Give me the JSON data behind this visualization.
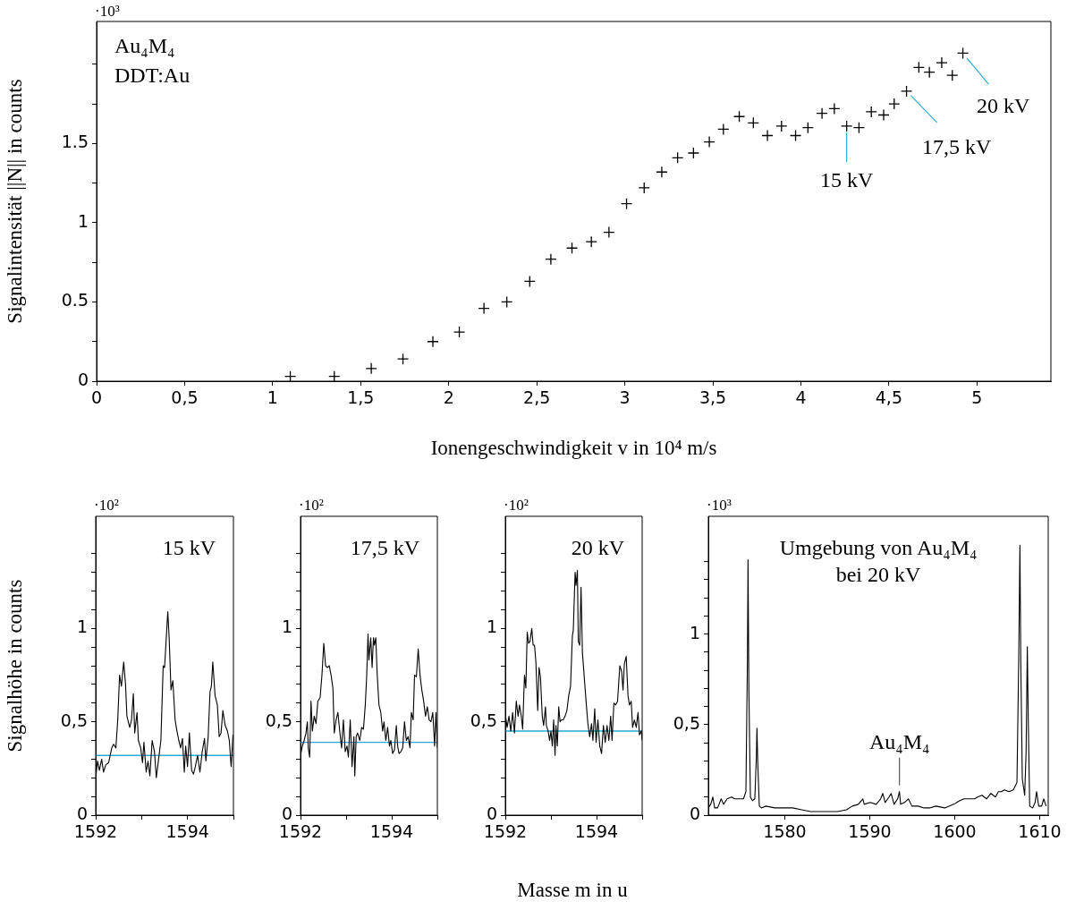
{
  "chart_data": [
    {
      "type": "scatter",
      "xlabel": "Ionengeschwindigkeit v in 10⁴ m/s",
      "ylabel": "Signalintensität ||N|| in counts",
      "color": "#000000",
      "marker": "cross",
      "x": [
        1.1,
        1.35,
        1.56,
        1.74,
        1.91,
        2.06,
        2.2,
        2.33,
        2.46,
        2.58,
        2.7,
        2.81,
        2.91,
        3.01,
        3.11,
        3.21,
        3.3,
        3.39,
        3.48,
        3.56,
        3.65,
        3.73,
        3.81,
        3.89,
        3.97,
        4.04,
        4.12,
        4.19,
        4.26,
        4.33,
        4.4,
        4.47,
        4.53,
        4.6,
        4.67,
        4.73,
        4.8,
        4.86,
        4.92
      ],
      "values": [
        0.03,
        0.03,
        0.08,
        0.14,
        0.25,
        0.31,
        0.46,
        0.5,
        0.63,
        0.77,
        0.84,
        0.88,
        0.94,
        1.12,
        1.22,
        1.32,
        1.41,
        1.44,
        1.51,
        1.59,
        1.67,
        1.63,
        1.55,
        1.61,
        1.55,
        1.6,
        1.69,
        1.72,
        1.61,
        1.6,
        1.7,
        1.68,
        1.75,
        1.83,
        1.98,
        1.95,
        2.01,
        1.93,
        2.07
      ],
      "xlim": [
        0,
        5.42
      ],
      "ylim": [
        0,
        2.27
      ],
      "xticks": [
        0,
        {
          "value": 0.5,
          "label": "0,5"
        },
        1,
        {
          "value": 1.5,
          "label": "1,5"
        },
        2,
        {
          "value": 2.5,
          "label": "2,5"
        },
        3,
        {
          "value": 3.5,
          "label": "3,5"
        },
        4,
        {
          "value": 4.5,
          "label": "4,5"
        },
        5
      ],
      "yticks": [
        0,
        {
          "value": 0.25,
          "label": null
        },
        0.5,
        {
          "value": 0.75,
          "label": null
        },
        1,
        {
          "value": 1.25,
          "label": null
        },
        1.5,
        {
          "value": 1.75,
          "label": null
        },
        {
          "value": 2,
          "label": null
        }
      ],
      "annotations": [
        "·10³",
        "Au₄M₄",
        "DDT:Au",
        {
          "text": "15 kV",
          "x": 4.26,
          "y": 1.61
        },
        {
          "text": "17,5 kV",
          "x": 4.6,
          "y": 1.83
        },
        {
          "text": "20 kV",
          "x": 4.92,
          "y": 2.07
        }
      ]
    },
    {
      "type": "line",
      "ylabel": "Signalhöhe in counts",
      "color": "#000000",
      "x": [
        1592.0,
        1592.04,
        1592.08,
        1592.13,
        1592.17,
        1592.22,
        1592.28,
        1592.35,
        1592.39,
        1592.44,
        1592.48,
        1592.52,
        1592.56,
        1592.61,
        1592.65,
        1592.68,
        1592.74,
        1592.78,
        1592.82,
        1592.85,
        1592.9,
        1592.93,
        1592.98,
        1593.02,
        1593.05,
        1593.1,
        1593.14,
        1593.18,
        1593.23,
        1593.28,
        1593.32,
        1593.37,
        1593.42,
        1593.47,
        1593.5,
        1593.54,
        1593.57,
        1593.6,
        1593.64,
        1593.68,
        1593.73,
        1593.77,
        1593.81,
        1593.85,
        1593.89,
        1593.93,
        1593.96,
        1594.0,
        1594.04,
        1594.09,
        1594.13,
        1594.17,
        1594.22,
        1594.27,
        1594.32,
        1594.37,
        1594.4,
        1594.45,
        1594.49,
        1594.52,
        1594.55,
        1594.6,
        1594.65,
        1594.69,
        1594.73,
        1594.77,
        1594.82,
        1594.87,
        1594.91,
        1594.95,
        1594.99
      ],
      "values": [
        0.2,
        0.29,
        0.24,
        0.3,
        0.23,
        0.27,
        0.28,
        0.36,
        0.38,
        0.36,
        0.51,
        0.75,
        0.69,
        0.82,
        0.7,
        0.53,
        0.47,
        0.51,
        0.65,
        0.44,
        0.55,
        0.4,
        0.36,
        0.28,
        0.39,
        0.23,
        0.29,
        0.21,
        0.4,
        0.34,
        0.2,
        0.3,
        0.4,
        0.8,
        0.79,
        0.96,
        1.09,
        0.95,
        0.67,
        0.72,
        0.51,
        0.45,
        0.4,
        0.36,
        0.41,
        0.23,
        0.37,
        0.26,
        0.44,
        0.24,
        0.22,
        0.26,
        0.32,
        0.23,
        0.34,
        0.41,
        0.29,
        0.42,
        0.66,
        0.69,
        0.82,
        0.64,
        0.59,
        0.42,
        0.44,
        0.56,
        0.48,
        0.45,
        0.4,
        0.26,
        0.43
      ],
      "xlim": [
        1592,
        1595
      ],
      "ylim": [
        0,
        1.6
      ],
      "xticks": [
        1592,
        {
          "value": 1593,
          "label": null
        },
        1594,
        {
          "value": 1595,
          "label": null
        }
      ],
      "yticks": [
        0,
        {
          "value": 0.1,
          "label": null
        },
        {
          "value": 0.2,
          "label": null
        },
        {
          "value": 0.3,
          "label": null
        },
        {
          "value": 0.4,
          "label": null
        },
        {
          "value": 0.5,
          "label": "0,5"
        },
        {
          "value": 0.6,
          "label": null
        },
        {
          "value": 0.7,
          "label": null
        },
        {
          "value": 0.8,
          "label": null
        },
        {
          "value": 0.9,
          "label": null
        },
        1,
        {
          "value": 1.1,
          "label": null
        },
        {
          "value": 1.2,
          "label": null
        },
        {
          "value": 1.3,
          "label": null
        },
        {
          "value": 1.4,
          "label": null
        }
      ],
      "ref_lines": [
        {
          "axis": "y",
          "value": 0.32,
          "color": "#29a9d6"
        }
      ],
      "annotations": [
        "15 kV",
        "·10²"
      ]
    },
    {
      "type": "line",
      "color": "#000000",
      "x": [
        1592.0,
        1592.04,
        1592.08,
        1592.12,
        1592.15,
        1592.17,
        1592.2,
        1592.23,
        1592.26,
        1592.3,
        1592.34,
        1592.38,
        1592.43,
        1592.47,
        1592.51,
        1592.55,
        1592.59,
        1592.63,
        1592.67,
        1592.71,
        1592.74,
        1592.78,
        1592.82,
        1592.86,
        1592.9,
        1592.94,
        1592.98,
        1593.02,
        1593.05,
        1593.09,
        1593.13,
        1593.17,
        1593.19,
        1593.22,
        1593.25,
        1593.3,
        1593.34,
        1593.38,
        1593.42,
        1593.45,
        1593.48,
        1593.5,
        1593.54,
        1593.57,
        1593.6,
        1593.62,
        1593.65,
        1593.68,
        1593.72,
        1593.76,
        1593.8,
        1593.83,
        1593.87,
        1593.91,
        1593.95,
        1593.98,
        1594.02,
        1594.06,
        1594.1,
        1594.13,
        1594.16,
        1594.2,
        1594.24,
        1594.28,
        1594.32,
        1594.36,
        1594.4,
        1594.43,
        1594.47,
        1594.5,
        1594.54,
        1594.58,
        1594.62,
        1594.66,
        1594.7,
        1594.74,
        1594.78,
        1594.82,
        1594.86,
        1594.9,
        1594.94,
        1594.97,
        1595.0
      ],
      "values": [
        0.32,
        0.37,
        0.4,
        0.44,
        0.5,
        0.36,
        0.31,
        0.61,
        0.45,
        0.53,
        0.49,
        0.61,
        0.63,
        0.75,
        0.92,
        0.8,
        0.79,
        0.8,
        0.75,
        0.68,
        0.44,
        0.51,
        0.55,
        0.45,
        0.36,
        0.51,
        0.34,
        0.37,
        0.31,
        0.51,
        0.26,
        0.42,
        0.21,
        0.42,
        0.44,
        0.4,
        0.47,
        0.46,
        0.59,
        0.74,
        0.97,
        0.83,
        0.95,
        0.79,
        0.95,
        0.91,
        0.95,
        0.76,
        0.59,
        0.55,
        0.45,
        0.5,
        0.4,
        0.47,
        0.37,
        0.4,
        0.33,
        0.35,
        0.48,
        0.37,
        0.33,
        0.34,
        0.36,
        0.5,
        0.4,
        0.42,
        0.36,
        0.55,
        0.51,
        0.75,
        0.74,
        0.89,
        0.75,
        0.67,
        0.61,
        0.53,
        0.58,
        0.51,
        0.5,
        0.55,
        0.37,
        0.55,
        0.36
      ],
      "xlim": [
        1592,
        1595
      ],
      "ylim": [
        0,
        1.6
      ],
      "xticks": [
        1592,
        {
          "value": 1593,
          "label": null
        },
        1594,
        {
          "value": 1595,
          "label": null
        }
      ],
      "yticks": [
        0,
        {
          "value": 0.1,
          "label": null
        },
        {
          "value": 0.2,
          "label": null
        },
        {
          "value": 0.3,
          "label": null
        },
        {
          "value": 0.4,
          "label": null
        },
        {
          "value": 0.5,
          "label": "0,5"
        },
        {
          "value": 0.6,
          "label": null
        },
        {
          "value": 0.7,
          "label": null
        },
        {
          "value": 0.8,
          "label": null
        },
        {
          "value": 0.9,
          "label": null
        },
        1,
        {
          "value": 1.1,
          "label": null
        },
        {
          "value": 1.2,
          "label": null
        },
        {
          "value": 1.3,
          "label": null
        },
        {
          "value": 1.4,
          "label": null
        }
      ],
      "ref_lines": [
        {
          "axis": "y",
          "value": 0.39,
          "color": "#29a9d6"
        }
      ],
      "annotations": [
        "17,5 kV",
        "·10²"
      ]
    },
    {
      "type": "line",
      "xlabel": "Masse m in u",
      "color": "#000000",
      "x": [
        1592.0,
        1592.04,
        1592.08,
        1592.12,
        1592.16,
        1592.2,
        1592.24,
        1592.28,
        1592.31,
        1592.35,
        1592.38,
        1592.42,
        1592.45,
        1592.48,
        1592.51,
        1592.54,
        1592.58,
        1592.61,
        1592.64,
        1592.67,
        1592.71,
        1592.74,
        1592.77,
        1592.81,
        1592.84,
        1592.88,
        1592.9,
        1592.94,
        1592.97,
        1593.0,
        1593.03,
        1593.06,
        1593.09,
        1593.11,
        1593.14,
        1593.17,
        1593.2,
        1593.23,
        1593.27,
        1593.31,
        1593.35,
        1593.39,
        1593.43,
        1593.47,
        1593.49,
        1593.53,
        1593.55,
        1593.58,
        1593.6,
        1593.63,
        1593.66,
        1593.69,
        1593.73,
        1593.77,
        1593.81,
        1593.85,
        1593.89,
        1593.92,
        1593.96,
        1593.99,
        1594.03,
        1594.07,
        1594.11,
        1594.15,
        1594.19,
        1594.23,
        1594.27,
        1594.31,
        1594.34,
        1594.38,
        1594.42,
        1594.46,
        1594.51,
        1594.55,
        1594.58,
        1594.61,
        1594.65,
        1594.69,
        1594.72,
        1594.76,
        1594.79,
        1594.83,
        1594.87,
        1594.91,
        1594.94,
        1594.98,
        1595.0
      ],
      "values": [
        0.54,
        0.47,
        0.53,
        0.45,
        0.55,
        0.44,
        0.61,
        0.53,
        0.59,
        0.53,
        0.46,
        0.75,
        0.68,
        0.98,
        0.92,
        0.93,
        1.0,
        0.91,
        0.91,
        0.82,
        0.56,
        0.79,
        0.74,
        0.53,
        0.48,
        0.58,
        0.48,
        0.45,
        0.4,
        0.45,
        0.37,
        0.51,
        0.32,
        0.48,
        0.37,
        0.58,
        0.5,
        0.51,
        0.51,
        0.53,
        0.56,
        0.64,
        0.69,
        0.96,
        0.99,
        1.3,
        1.23,
        1.31,
        0.93,
        0.91,
        1.22,
        0.87,
        0.74,
        0.61,
        0.49,
        0.42,
        0.49,
        0.4,
        0.57,
        0.39,
        0.51,
        0.37,
        0.33,
        0.48,
        0.39,
        0.48,
        0.4,
        0.53,
        0.4,
        0.6,
        0.59,
        0.61,
        0.8,
        0.77,
        0.67,
        0.81,
        0.85,
        0.64,
        0.59,
        0.61,
        0.47,
        0.51,
        0.47,
        0.55,
        0.43,
        0.45,
        0.4
      ],
      "xlim": [
        1592,
        1595
      ],
      "ylim": [
        0,
        1.6
      ],
      "xticks": [
        1592,
        {
          "value": 1593,
          "label": null
        },
        1594,
        {
          "value": 1595,
          "label": null
        }
      ],
      "yticks": [
        0,
        {
          "value": 0.1,
          "label": null
        },
        {
          "value": 0.2,
          "label": null
        },
        {
          "value": 0.3,
          "label": null
        },
        {
          "value": 0.4,
          "label": null
        },
        {
          "value": 0.5,
          "label": "0,5"
        },
        {
          "value": 0.6,
          "label": null
        },
        {
          "value": 0.7,
          "label": null
        },
        {
          "value": 0.8,
          "label": null
        },
        {
          "value": 0.9,
          "label": null
        },
        1,
        {
          "value": 1.1,
          "label": null
        },
        {
          "value": 1.2,
          "label": null
        },
        {
          "value": 1.3,
          "label": null
        },
        {
          "value": 1.4,
          "label": null
        }
      ],
      "ref_lines": [
        {
          "axis": "y",
          "value": 0.45,
          "color": "#29a9d6"
        }
      ],
      "annotations": [
        "20 kV",
        "·10²"
      ]
    },
    {
      "type": "line",
      "color": "#000000",
      "x": [
        1571.0,
        1571.28,
        1571.53,
        1571.74,
        1572.09,
        1572.51,
        1572.79,
        1573.21,
        1573.74,
        1574.09,
        1574.61,
        1575.14,
        1575.42,
        1575.6,
        1575.67,
        1575.77,
        1575.95,
        1576.19,
        1576.47,
        1576.65,
        1576.72,
        1576.82,
        1577.0,
        1577.25,
        1577.77,
        1578.82,
        1579.88,
        1580.93,
        1581.98,
        1583.04,
        1584.09,
        1585.14,
        1586.19,
        1587.25,
        1587.95,
        1588.65,
        1589.18,
        1589.35,
        1590.05,
        1590.75,
        1591.28,
        1591.53,
        1591.81,
        1592.26,
        1592.51,
        1592.86,
        1593.28,
        1593.49,
        1593.63,
        1594.09,
        1594.54,
        1594.96,
        1595.67,
        1596.37,
        1597.07,
        1597.77,
        1598.82,
        1599.88,
        1600.58,
        1601.11,
        1601.46,
        1601.81,
        1602.33,
        1602.68,
        1603.21,
        1603.74,
        1604.26,
        1604.79,
        1605.14,
        1605.49,
        1605.84,
        1606.37,
        1606.89,
        1607.32,
        1607.53,
        1607.67,
        1607.77,
        1607.95,
        1608.23,
        1608.4,
        1608.54,
        1608.65,
        1608.82,
        1609.18,
        1609.46,
        1609.63,
        1609.88,
        1610.23,
        1610.47,
        1610.75
      ],
      "values": [
        0.04,
        0.06,
        0.1,
        0.04,
        0.04,
        0.09,
        0.06,
        0.09,
        0.1,
        0.09,
        0.09,
        0.09,
        0.13,
        0.86,
        1.41,
        0.69,
        0.1,
        0.08,
        0.09,
        0.32,
        0.48,
        0.28,
        0.05,
        0.04,
        0.05,
        0.04,
        0.04,
        0.04,
        0.03,
        0.02,
        0.02,
        0.02,
        0.02,
        0.03,
        0.05,
        0.06,
        0.09,
        0.06,
        0.07,
        0.06,
        0.09,
        0.12,
        0.07,
        0.1,
        0.12,
        0.06,
        0.09,
        0.13,
        0.06,
        0.07,
        0.09,
        0.05,
        0.05,
        0.04,
        0.04,
        0.05,
        0.04,
        0.06,
        0.08,
        0.09,
        0.09,
        0.09,
        0.09,
        0.1,
        0.11,
        0.09,
        0.12,
        0.1,
        0.13,
        0.13,
        0.14,
        0.13,
        0.14,
        0.18,
        0.86,
        1.49,
        0.86,
        0.2,
        0.11,
        0.36,
        0.93,
        0.53,
        0.05,
        0.04,
        0.07,
        0.13,
        0.05,
        0.05,
        0.09,
        0.05
      ],
      "xlim": [
        1571,
        1611
      ],
      "ylim": [
        0,
        1.65
      ],
      "xticks": [
        1580,
        1590,
        1600,
        1610
      ],
      "yticks": [
        0,
        {
          "value": 0.1,
          "label": null
        },
        {
          "value": 0.2,
          "label": null
        },
        {
          "value": 0.3,
          "label": null
        },
        {
          "value": 0.4,
          "label": null
        },
        {
          "value": 0.5,
          "label": "0,5"
        },
        {
          "value": 0.6,
          "label": null
        },
        {
          "value": 0.7,
          "label": null
        },
        {
          "value": 0.8,
          "label": null
        },
        {
          "value": 0.9,
          "label": null
        },
        1,
        {
          "value": 1.1,
          "label": null
        },
        {
          "value": 1.2,
          "label": null
        },
        {
          "value": 1.3,
          "label": null
        },
        {
          "value": 1.4,
          "label": null
        }
      ],
      "annotations": [
        "·10³",
        "Umgebung von Au₄M₄",
        "bei 20 kV",
        {
          "text": "Au₄M₄",
          "x": 1593.49,
          "y": 0.13
        }
      ]
    }
  ]
}
